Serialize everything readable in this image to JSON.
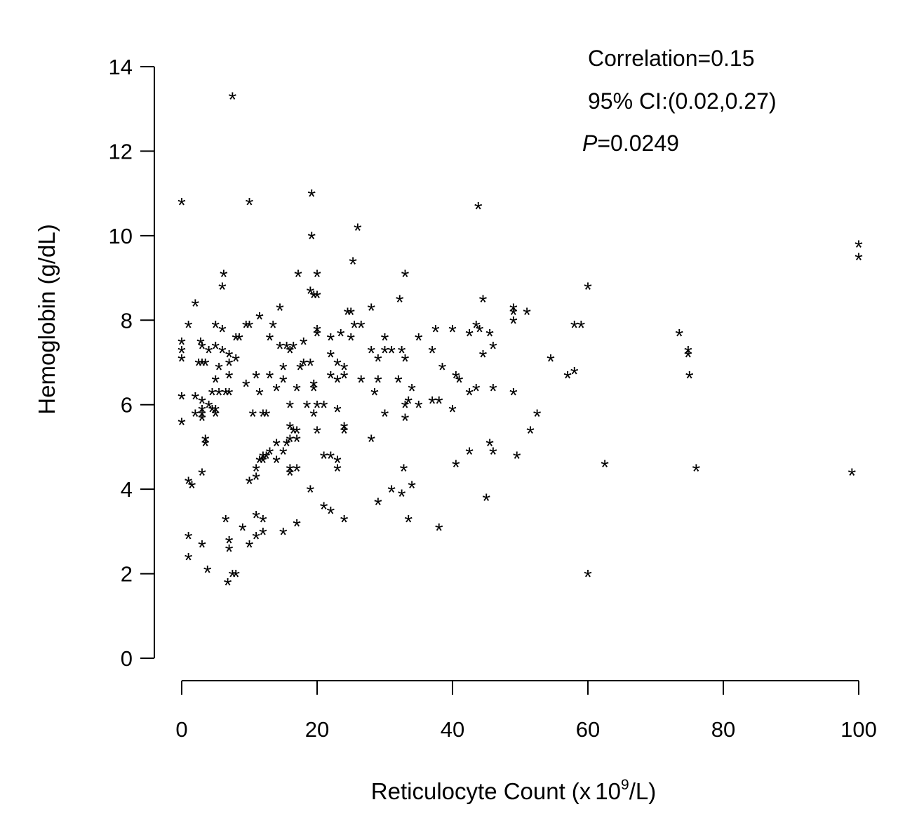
{
  "chart_data": {
    "type": "scatter",
    "marker": "*",
    "xlabel": "Reticulocyte Count",
    "xlabel_unit_prefix": "(x",
    "xlabel_unit_base": "10",
    "xlabel_unit_exp": "9",
    "xlabel_unit_suffix": "/L)",
    "ylabel": "Hemoglobin (g/dL)",
    "xlim": [
      0,
      100
    ],
    "ylim": [
      0,
      14
    ],
    "x_ticks": [
      0,
      20,
      40,
      60,
      80,
      100
    ],
    "y_ticks": [
      0,
      2,
      4,
      6,
      8,
      10,
      12,
      14
    ],
    "grid": false,
    "annotations": {
      "correlation": "Correlation=0.15",
      "ci": "95% CI:(0.02,0.27)",
      "p_symbol": "P",
      "p_value": "=0.0249"
    },
    "points": [
      [
        7.5,
        13.3
      ],
      [
        0,
        10.8
      ],
      [
        10,
        10.8
      ],
      [
        19.2,
        11
      ],
      [
        19.2,
        10
      ],
      [
        43.8,
        10.7
      ],
      [
        26,
        10.2
      ],
      [
        100,
        9.8
      ],
      [
        100,
        9.5
      ],
      [
        25.3,
        9.4
      ],
      [
        6.2,
        9.1
      ],
      [
        17.2,
        9.1
      ],
      [
        20,
        9.1
      ],
      [
        33,
        9.1
      ],
      [
        6,
        8.8
      ],
      [
        60,
        8.8
      ],
      [
        19,
        8.7
      ],
      [
        19.5,
        8.6
      ],
      [
        20,
        8.6
      ],
      [
        32.2,
        8.5
      ],
      [
        44.5,
        8.5
      ],
      [
        2,
        8.4
      ],
      [
        14.5,
        8.3
      ],
      [
        28,
        8.3
      ],
      [
        49,
        8.3
      ],
      [
        51,
        8.2
      ],
      [
        24.5,
        8.2
      ],
      [
        25,
        8.2
      ],
      [
        49,
        8.2
      ],
      [
        11.5,
        8.1
      ],
      [
        1,
        7.9
      ],
      [
        5,
        7.9
      ],
      [
        9.5,
        7.9
      ],
      [
        10,
        7.9
      ],
      [
        13.5,
        7.9
      ],
      [
        25.5,
        7.9
      ],
      [
        26.5,
        7.9
      ],
      [
        43.5,
        7.9
      ],
      [
        58,
        7.9
      ],
      [
        59,
        7.9
      ],
      [
        49,
        8
      ],
      [
        6,
        7.8
      ],
      [
        20,
        7.8
      ],
      [
        37.5,
        7.8
      ],
      [
        40,
        7.8
      ],
      [
        44,
        7.8
      ],
      [
        20,
        7.7
      ],
      [
        23.5,
        7.7
      ],
      [
        42.5,
        7.7
      ],
      [
        45.5,
        7.7
      ],
      [
        73.5,
        7.7
      ],
      [
        8,
        7.6
      ],
      [
        8.5,
        7.6
      ],
      [
        13,
        7.6
      ],
      [
        22,
        7.6
      ],
      [
        25,
        7.6
      ],
      [
        30,
        7.6
      ],
      [
        35,
        7.6
      ],
      [
        0,
        7.5
      ],
      [
        2.8,
        7.5
      ],
      [
        18,
        7.5
      ],
      [
        3,
        7.4
      ],
      [
        5,
        7.4
      ],
      [
        14.5,
        7.4
      ],
      [
        15.5,
        7.4
      ],
      [
        16.5,
        7.4
      ],
      [
        46,
        7.4
      ],
      [
        0,
        7.3
      ],
      [
        4,
        7.3
      ],
      [
        6,
        7.3
      ],
      [
        16,
        7.3
      ],
      [
        28,
        7.3
      ],
      [
        30,
        7.3
      ],
      [
        31,
        7.3
      ],
      [
        32.5,
        7.3
      ],
      [
        37,
        7.3
      ],
      [
        74.8,
        7.3
      ],
      [
        7,
        7.2
      ],
      [
        22,
        7.2
      ],
      [
        74.8,
        7.2
      ],
      [
        0,
        7.1
      ],
      [
        8,
        7.1
      ],
      [
        29,
        7.1
      ],
      [
        33,
        7.1
      ],
      [
        44.5,
        7.2
      ],
      [
        54.5,
        7.1
      ],
      [
        2.5,
        7
      ],
      [
        3,
        7
      ],
      [
        3.5,
        7
      ],
      [
        7,
        7
      ],
      [
        18,
        7
      ],
      [
        19,
        7
      ],
      [
        23,
        7
      ],
      [
        5.5,
        6.9
      ],
      [
        15,
        6.9
      ],
      [
        17.5,
        6.9
      ],
      [
        24,
        6.9
      ],
      [
        38.5,
        6.9
      ],
      [
        11,
        6.7
      ],
      [
        13,
        6.7
      ],
      [
        7,
        6.7
      ],
      [
        22,
        6.7
      ],
      [
        24,
        6.7
      ],
      [
        40.5,
        6.7
      ],
      [
        57,
        6.7
      ],
      [
        58,
        6.8
      ],
      [
        75,
        6.7
      ],
      [
        5,
        6.6
      ],
      [
        15,
        6.6
      ],
      [
        23,
        6.6
      ],
      [
        26.5,
        6.6
      ],
      [
        29,
        6.6
      ],
      [
        32,
        6.6
      ],
      [
        41,
        6.6
      ],
      [
        9.5,
        6.5
      ],
      [
        19.5,
        6.5
      ],
      [
        14,
        6.4
      ],
      [
        17,
        6.4
      ],
      [
        19.5,
        6.4
      ],
      [
        28.5,
        6.3
      ],
      [
        34,
        6.4
      ],
      [
        43.5,
        6.4
      ],
      [
        46,
        6.4
      ],
      [
        4.5,
        6.3
      ],
      [
        5.5,
        6.3
      ],
      [
        6.5,
        6.3
      ],
      [
        7,
        6.3
      ],
      [
        11.5,
        6.3
      ],
      [
        42.5,
        6.3
      ],
      [
        49,
        6.3
      ],
      [
        0,
        6.2
      ],
      [
        2,
        6.2
      ],
      [
        3,
        6.1
      ],
      [
        37,
        6.1
      ],
      [
        38,
        6.1
      ],
      [
        4,
        6
      ],
      [
        18.5,
        6
      ],
      [
        20,
        6
      ],
      [
        21,
        6
      ],
      [
        16,
        6
      ],
      [
        33,
        6
      ],
      [
        33.5,
        6.1
      ],
      [
        35,
        6
      ],
      [
        3,
        5.9
      ],
      [
        4.5,
        5.9
      ],
      [
        5,
        5.9
      ],
      [
        23,
        5.9
      ],
      [
        40,
        5.9
      ],
      [
        2,
        5.8
      ],
      [
        3,
        5.8
      ],
      [
        5,
        5.8
      ],
      [
        10.5,
        5.8
      ],
      [
        12,
        5.8
      ],
      [
        12.5,
        5.8
      ],
      [
        19.5,
        5.8
      ],
      [
        30,
        5.8
      ],
      [
        52.5,
        5.8
      ],
      [
        3,
        5.7
      ],
      [
        33,
        5.7
      ],
      [
        0,
        5.6
      ],
      [
        16,
        5.5
      ],
      [
        24,
        5.5
      ],
      [
        16.5,
        5.4
      ],
      [
        17,
        5.4
      ],
      [
        20,
        5.4
      ],
      [
        24,
        5.4
      ],
      [
        51.5,
        5.4
      ],
      [
        28,
        5.2
      ],
      [
        17,
        5.2
      ],
      [
        3.5,
        5.2
      ],
      [
        3.5,
        5.1
      ],
      [
        14,
        5.1
      ],
      [
        15.5,
        5.1
      ],
      [
        16,
        5.2
      ],
      [
        45.5,
        5.1
      ],
      [
        46,
        4.9
      ],
      [
        13,
        4.9
      ],
      [
        15,
        4.9
      ],
      [
        42.5,
        4.9
      ],
      [
        12,
        4.8
      ],
      [
        12.5,
        4.8
      ],
      [
        21,
        4.8
      ],
      [
        22,
        4.8
      ],
      [
        49.5,
        4.8
      ],
      [
        11.5,
        4.7
      ],
      [
        12,
        4.7
      ],
      [
        14,
        4.7
      ],
      [
        23,
        4.7
      ],
      [
        16,
        4.5
      ],
      [
        17,
        4.5
      ],
      [
        23,
        4.5
      ],
      [
        11,
        4.5
      ],
      [
        40.5,
        4.6
      ],
      [
        62.5,
        4.6
      ],
      [
        16,
        4.4
      ],
      [
        3,
        4.4
      ],
      [
        32.8,
        4.5
      ],
      [
        76,
        4.5
      ],
      [
        99,
        4.4
      ],
      [
        11,
        4.3
      ],
      [
        1,
        4.2
      ],
      [
        10,
        4.2
      ],
      [
        1.5,
        4.1
      ],
      [
        34,
        4.1
      ],
      [
        19,
        4
      ],
      [
        31,
        4
      ],
      [
        32.5,
        3.9
      ],
      [
        45,
        3.8
      ],
      [
        29,
        3.7
      ],
      [
        21,
        3.6
      ],
      [
        22,
        3.5
      ],
      [
        11,
        3.4
      ],
      [
        6.5,
        3.3
      ],
      [
        12,
        3.3
      ],
      [
        24,
        3.3
      ],
      [
        33.5,
        3.3
      ],
      [
        17,
        3.2
      ],
      [
        9,
        3.1
      ],
      [
        38,
        3.1
      ],
      [
        12,
        3
      ],
      [
        15,
        3
      ],
      [
        1,
        2.9
      ],
      [
        11,
        2.9
      ],
      [
        7,
        2.8
      ],
      [
        10,
        2.7
      ],
      [
        3,
        2.7
      ],
      [
        7,
        2.6
      ],
      [
        1,
        2.4
      ],
      [
        3.8,
        2.1
      ],
      [
        7.5,
        2
      ],
      [
        8,
        2
      ],
      [
        60,
        2
      ],
      [
        6.8,
        1.8
      ]
    ]
  }
}
